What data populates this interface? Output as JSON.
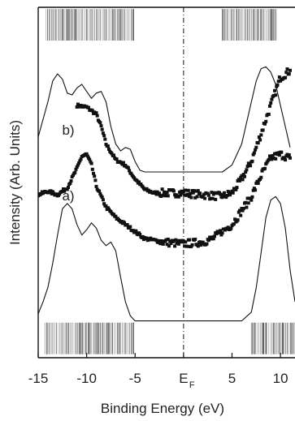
{
  "chart_data": {
    "type": "scatter",
    "xlabel": "Binding Energy (eV)",
    "ylabel": "Intensity (Arb. Units)",
    "xlim": [
      -15,
      11.5
    ],
    "ylim": [
      0,
      100
    ],
    "x_ticks": [
      -15,
      -10,
      -5,
      0,
      5,
      10
    ],
    "x_tick_labels": [
      "-15",
      "-10",
      "-5",
      "E",
      "5",
      "10"
    ],
    "fermi_label": {
      "main": "E",
      "sub": "F"
    },
    "fermi_level": 0,
    "grid": false,
    "series": [
      {
        "name": "b)",
        "kind": "points",
        "points": [
          [
            -11.0,
            72.0
          ],
          [
            -10.0,
            71.5
          ],
          [
            -9.0,
            69.5
          ],
          [
            -8.5,
            66.0
          ],
          [
            -8.0,
            61.0
          ],
          [
            -7.0,
            56.5
          ],
          [
            -6.0,
            55.0
          ],
          [
            -5.0,
            51.0
          ],
          [
            -4.0,
            48.0
          ],
          [
            -3.0,
            47.0
          ],
          [
            -2.0,
            47.0
          ],
          [
            0.0,
            47.0
          ],
          [
            2.0,
            46.5
          ],
          [
            4.0,
            46.0
          ],
          [
            5.0,
            47.0
          ],
          [
            6.0,
            51.0
          ],
          [
            7.0,
            56.0
          ],
          [
            8.0,
            64.0
          ],
          [
            9.0,
            72.0
          ],
          [
            10.0,
            80.0
          ],
          [
            11.0,
            82.0
          ]
        ]
      },
      {
        "name": "a)",
        "kind": "points",
        "points": [
          [
            -15.0,
            46.5
          ],
          [
            -14.0,
            47.5
          ],
          [
            -13.0,
            46.5
          ],
          [
            -12.0,
            48.5
          ],
          [
            -11.0,
            54.0
          ],
          [
            -10.5,
            57.5
          ],
          [
            -10.0,
            58.0
          ],
          [
            -9.5,
            55.0
          ],
          [
            -9.0,
            49.0
          ],
          [
            -8.0,
            43.0
          ],
          [
            -7.0,
            40.0
          ],
          [
            -6.0,
            38.0
          ],
          [
            -4.0,
            34.0
          ],
          [
            -2.0,
            33.0
          ],
          [
            0.0,
            32.5
          ],
          [
            2.0,
            33.0
          ],
          [
            3.0,
            34.0
          ],
          [
            5.0,
            38.0
          ],
          [
            7.0,
            46.0
          ],
          [
            8.0,
            52.0
          ],
          [
            9.0,
            57.0
          ],
          [
            10.0,
            58.0
          ],
          [
            11.0,
            57.0
          ]
        ]
      },
      {
        "name": "",
        "kind": "line",
        "points": [
          [
            -15.0,
            63.0
          ],
          [
            -14.0,
            73.0
          ],
          [
            -13.5,
            79.0
          ],
          [
            -13.0,
            81.0
          ],
          [
            -12.5,
            79.5
          ],
          [
            -12.0,
            75.5
          ],
          [
            -11.5,
            75.0
          ],
          [
            -11.0,
            77.0
          ],
          [
            -10.5,
            78.0
          ],
          [
            -10.0,
            76.0
          ],
          [
            -9.5,
            74.0
          ],
          [
            -9.0,
            75.5
          ],
          [
            -8.5,
            76.0
          ],
          [
            -8.0,
            73.0
          ],
          [
            -7.5,
            66.0
          ],
          [
            -7.0,
            61.0
          ],
          [
            -6.5,
            59.0
          ],
          [
            -6.0,
            60.0
          ],
          [
            -5.5,
            59.5
          ],
          [
            -5.0,
            56.0
          ],
          [
            -4.5,
            53.5
          ],
          [
            -4.0,
            53.0
          ],
          [
            4.0,
            53.0
          ],
          [
            5.0,
            55.0
          ],
          [
            6.0,
            61.0
          ],
          [
            7.0,
            73.0
          ],
          [
            7.5,
            79.0
          ],
          [
            8.0,
            82.5
          ],
          [
            8.5,
            83.0
          ],
          [
            9.0,
            81.5
          ],
          [
            9.5,
            78.0
          ],
          [
            10.0,
            72.0
          ],
          [
            11.0,
            60.0
          ]
        ]
      },
      {
        "name": "",
        "kind": "line",
        "points": [
          [
            -15.0,
            12.5
          ],
          [
            -14.5,
            16.0
          ],
          [
            -14.0,
            20.0
          ],
          [
            -13.5,
            27.0
          ],
          [
            -13.0,
            35.0
          ],
          [
            -12.5,
            42.5
          ],
          [
            -12.0,
            44.0
          ],
          [
            -11.5,
            42.5
          ],
          [
            -11.0,
            38.0
          ],
          [
            -10.5,
            35.0
          ],
          [
            -10.0,
            36.5
          ],
          [
            -9.5,
            38.5
          ],
          [
            -9.0,
            37.0
          ],
          [
            -8.5,
            33.5
          ],
          [
            -8.0,
            32.0
          ],
          [
            -7.5,
            33.0
          ],
          [
            -7.0,
            30.5
          ],
          [
            -6.5,
            23.0
          ],
          [
            -6.0,
            16.0
          ],
          [
            -5.5,
            12.0
          ],
          [
            -5.0,
            10.5
          ],
          [
            6.0,
            10.5
          ],
          [
            7.0,
            13.0
          ],
          [
            7.5,
            20.0
          ],
          [
            8.0,
            30.0
          ],
          [
            8.5,
            40.0
          ],
          [
            9.0,
            45.0
          ],
          [
            9.5,
            46.0
          ],
          [
            10.0,
            44.0
          ],
          [
            10.5,
            37.0
          ],
          [
            11.0,
            25.0
          ],
          [
            11.5,
            16.0
          ]
        ]
      }
    ],
    "annotations": [
      "b)",
      "a)"
    ],
    "tick_bars_top": {
      "y_range": [
        90.5,
        99.5
      ],
      "regions": [
        [
          -14.2,
          -5.0
        ],
        [
          4.0,
          9.7
        ]
      ]
    },
    "tick_bars_bottom": {
      "y_range": [
        1.0,
        10.0
      ],
      "regions": [
        [
          -14.3,
          -5.1
        ],
        [
          7.0,
          11.5
        ]
      ]
    }
  }
}
